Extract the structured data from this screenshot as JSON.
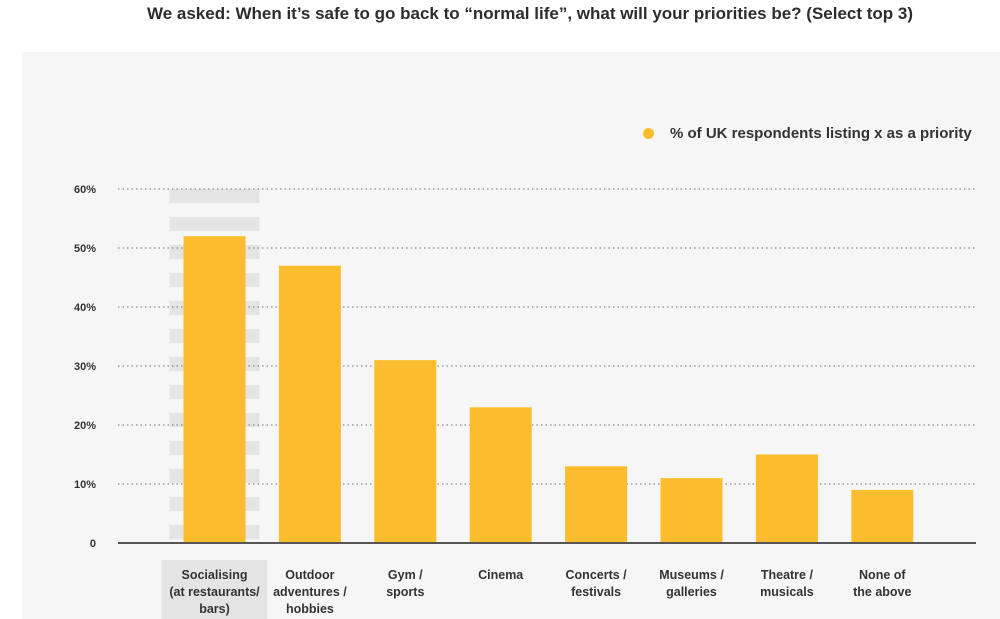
{
  "chart_data": {
    "type": "bar",
    "title": "We asked: When it’s safe to go back to “normal life”, what will your priorities be? (Select top 3)",
    "legend": "% of UK respondents listing x as a priority",
    "legend_position": "top-right",
    "categories": [
      [
        "Socialising",
        "(at restaurants/",
        "bars)"
      ],
      [
        "Outdoor",
        "adventures /",
        "hobbies"
      ],
      [
        "Gym /",
        "sports"
      ],
      [
        "Cinema"
      ],
      [
        "Concerts /",
        "festivals"
      ],
      [
        "Museums /",
        "galleries"
      ],
      [
        "Theatre /",
        "musicals"
      ],
      [
        "None of",
        "the above"
      ]
    ],
    "values": [
      52,
      47,
      31,
      23,
      13,
      11,
      15,
      9
    ],
    "highlighted_index": 0,
    "ylim": [
      0,
      60
    ],
    "yticks": [
      0,
      10,
      20,
      30,
      40,
      50,
      60
    ],
    "ytick_labels": [
      "0",
      "10%",
      "20%",
      "30%",
      "40%",
      "50%",
      "60%"
    ],
    "grid": true,
    "xlabel": "",
    "ylabel": "",
    "colors": {
      "bar": "#fbbd2e",
      "highlight": "#e4e4e4",
      "grid": "#6e6e6e",
      "axis": "#555555",
      "text": "#333333"
    }
  }
}
